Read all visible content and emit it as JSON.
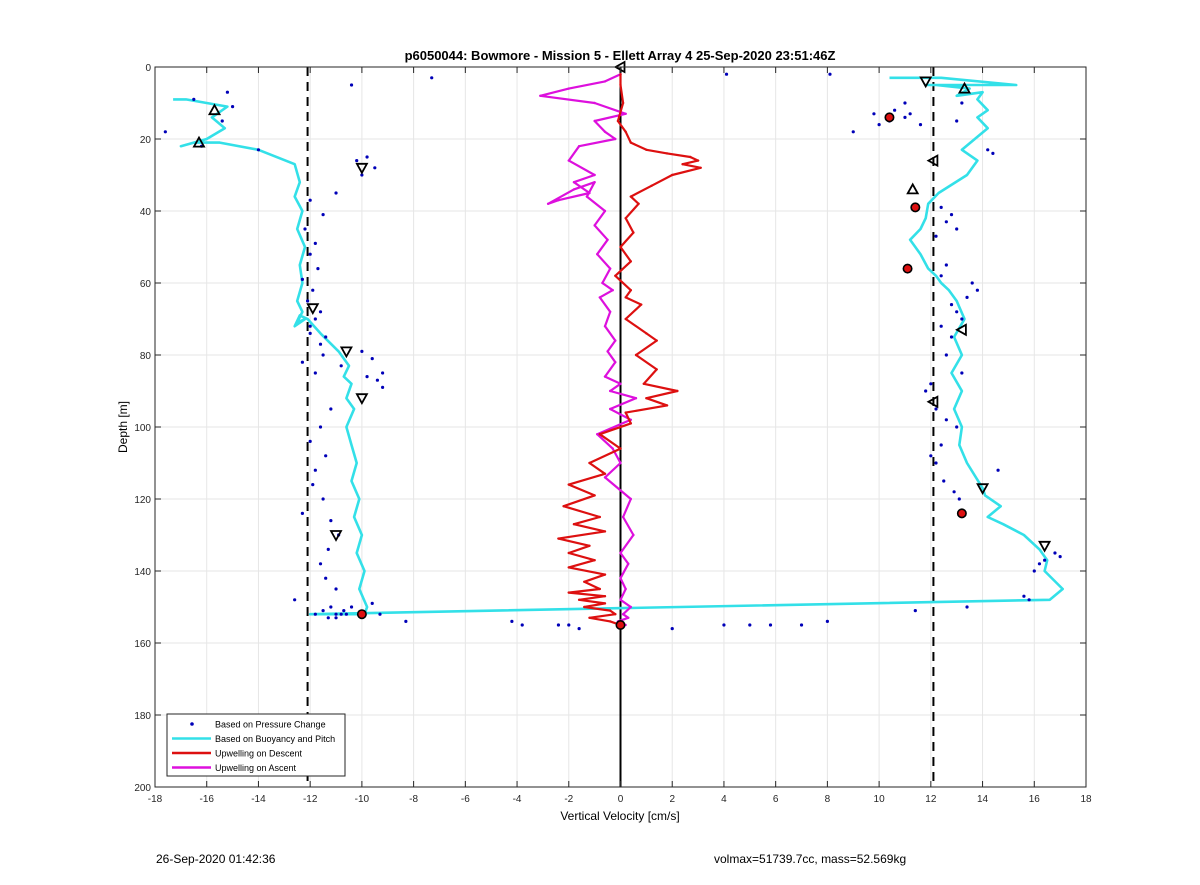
{
  "footer": {
    "timestamp": "26-Sep-2020 01:42:36",
    "info": "volmax=51739.7cc, mass=52.569kg"
  },
  "chart_data": {
    "type": "line",
    "title": "p6050044: Bowmore - Mission 5 - Ellett Array 4 25-Sep-2020 23:51:46Z",
    "xlabel": "Vertical Velocity [cm/s]",
    "ylabel": "Depth [m]",
    "xlim": [
      -18,
      18
    ],
    "ylim": [
      0,
      200
    ],
    "y_reversed": true,
    "grid": true,
    "xticks": [
      -18,
      -16,
      -14,
      -12,
      -10,
      -8,
      -6,
      -4,
      -2,
      0,
      2,
      4,
      6,
      8,
      10,
      12,
      14,
      16,
      18
    ],
    "yticks": [
      0,
      20,
      40,
      60,
      80,
      100,
      120,
      140,
      160,
      180,
      200
    ],
    "legend_position": "bottom-left",
    "legend": [
      "Based on Pressure Change",
      "Based on Buoyancy and Pitch",
      "Upwelling on Descent",
      "Upwelling on Ascent"
    ],
    "colors": {
      "pressure": "#0000b8",
      "buoyancy": "#33e0e8",
      "descent": "#dd1010",
      "ascent": "#dd10dd",
      "reference": "#000000"
    },
    "reference_lines": {
      "solid_x": 0,
      "dashed_x": [
        -12.1,
        12.1
      ]
    },
    "series": [
      {
        "name": "Based on Buoyancy and Pitch",
        "x": [
          -17.3,
          -16.8,
          -16.0,
          -15.2,
          -15.8,
          -15.3,
          -16.0,
          -17.0,
          -16.5,
          -15.5,
          -14.0,
          -12.6,
          -12.4,
          -12.6,
          -12.3,
          -12.5,
          -12.2,
          -12.4,
          -12.3,
          -12.5,
          -12.3,
          -12.5,
          -12.2,
          -12.6,
          -12.4,
          -12.1,
          -11.6,
          -10.9,
          -10.5,
          -10.7,
          -10.4,
          -10.6,
          -10.3,
          -10.6,
          -10.4,
          -10.2,
          -10.4,
          -10.1,
          -10.3,
          -10.0,
          -10.2,
          -9.9,
          -10.1,
          -9.8,
          -9.9,
          -12.0,
          16.6,
          17.1,
          16.4,
          16.5,
          16.2,
          15.6,
          14.8,
          14.2,
          14.7,
          14.1,
          14.0,
          13.4,
          13.1,
          13.2,
          12.9,
          13.2,
          12.8,
          13.2,
          12.9,
          13.3,
          13.0,
          12.7,
          12.4,
          12.2,
          11.9,
          11.6,
          11.2,
          11.6,
          11.8,
          11.9,
          12.3,
          13.4,
          13.8,
          13.2,
          13.7,
          14.2,
          13.8,
          14.2,
          13.8,
          14.0,
          13.0,
          13.5,
          12.2,
          11.8,
          15.3,
          12.4,
          10.4
        ],
        "y": [
          9,
          9,
          10,
          11,
          14,
          17,
          20,
          22,
          21,
          21,
          23,
          27,
          32,
          36,
          40,
          45,
          50,
          55,
          60,
          65,
          68,
          71,
          70,
          72,
          69,
          70,
          74,
          79,
          83,
          86,
          88,
          92,
          95,
          100,
          105,
          110,
          115,
          120,
          125,
          130,
          135,
          140,
          145,
          150,
          152,
          152,
          148,
          145,
          140,
          137,
          134,
          130,
          127,
          125,
          122,
          119,
          117,
          110,
          105,
          100,
          95,
          90,
          85,
          80,
          75,
          70,
          65,
          62,
          60,
          58,
          56,
          52,
          48,
          45,
          42,
          38,
          35,
          30,
          26,
          23,
          20,
          17,
          14,
          12,
          9,
          7,
          8,
          6,
          5,
          5,
          5,
          3,
          3
        ]
      },
      {
        "name": "Upwelling on Descent",
        "x": [
          0.0,
          0.0,
          0.1,
          -0.1,
          0.2,
          0.4,
          1.0,
          1.8,
          2.7,
          3.0,
          2.4,
          3.1,
          2.0,
          1.2,
          0.4,
          0.7,
          0.2,
          0.5,
          0.0,
          0.4,
          -0.2,
          0.4,
          0.2,
          0.8,
          0.2,
          1.0,
          1.4,
          0.6,
          1.4,
          0.9,
          2.2,
          1.0,
          1.8,
          0.2,
          0.4,
          -0.8,
          0.0,
          -1.2,
          -0.6,
          -2.0,
          -1.0,
          -2.2,
          -0.8,
          -1.8,
          -0.6,
          -2.4,
          -1.2,
          -2.0,
          -1.0,
          -2.0,
          -0.6,
          -1.4,
          -0.8,
          -2.0,
          -0.6,
          -1.6,
          -0.6,
          -1.4,
          -0.4,
          -0.2,
          -1.2,
          -0.4,
          0.0
        ],
        "y": [
          2,
          5,
          10,
          15,
          18,
          21,
          23,
          24,
          25,
          26,
          27,
          28,
          30,
          33,
          36,
          38,
          42,
          46,
          50,
          54,
          58,
          62,
          64,
          66,
          70,
          74,
          76,
          80,
          84,
          88,
          90,
          92,
          94,
          96,
          99,
          102,
          106,
          110,
          113,
          116,
          119,
          122,
          125,
          127,
          129,
          131,
          133,
          135,
          137,
          139,
          141,
          143,
          145,
          146,
          147,
          148,
          149,
          150,
          151,
          152,
          153,
          154,
          155
        ]
      },
      {
        "name": "Upwelling on Ascent",
        "x": [
          0.0,
          -0.6,
          -2.0,
          -3.1,
          -1.0,
          0.2,
          -1.0,
          -0.6,
          -0.2,
          -1.6,
          -2.0,
          -1.0,
          -1.8,
          -1.2,
          -2.4,
          -2.8,
          -1.8,
          -1.0,
          -1.3,
          -0.6,
          -1.0,
          -0.5,
          -0.9,
          -0.4,
          -0.7,
          -0.3,
          -0.8,
          -0.4,
          -0.6,
          -0.2,
          -0.5,
          -0.2,
          -0.6,
          0.0,
          -0.4,
          0.6,
          -0.4,
          0.4,
          -0.9,
          -0.3,
          0.0,
          -0.6,
          0.4,
          0.1,
          0.5,
          0.0,
          0.3,
          0.0,
          0.2,
          0.0,
          0.4,
          0.1,
          0.3,
          -0.1,
          0.2
        ],
        "y": [
          2,
          4,
          6,
          8,
          10,
          13,
          15,
          18,
          20,
          22,
          26,
          30,
          32,
          35,
          37,
          38,
          34,
          32,
          36,
          40,
          44,
          48,
          52,
          56,
          60,
          62,
          64,
          68,
          72,
          76,
          79,
          82,
          86,
          88,
          90,
          92,
          95,
          98,
          102,
          106,
          110,
          114,
          120,
          125,
          130,
          135,
          138,
          142,
          145,
          148,
          150,
          152,
          153,
          154,
          155
        ]
      },
      {
        "name": "Based on Pressure Change",
        "x": [
          -15.2,
          -16.5,
          -17.6,
          -15.4,
          -15.0,
          -14.0,
          -16.2,
          -10.4,
          -7.3,
          -9.8,
          -10.2,
          -9.5,
          -10.0,
          -11.0,
          -12.0,
          -11.5,
          -12.2,
          -11.8,
          -12.0,
          -11.7,
          -12.3,
          -11.9,
          -12.1,
          -11.6,
          -11.8,
          -12.0,
          -11.4,
          -11.6,
          -12.0,
          -11.5,
          -12.3,
          -11.8,
          -10.0,
          -10.8,
          -9.6,
          -9.2,
          -9.8,
          -9.4,
          -9.2,
          -11.2,
          -11.6,
          -12.0,
          -11.4,
          -11.8,
          -11.9,
          -12.3,
          -11.5,
          -11.2,
          -10.9,
          -11.3,
          -11.6,
          -11.4,
          -11.0,
          -12.6,
          -11.2,
          -11.5,
          -10.8,
          -11.0,
          -11.3,
          -11.0,
          -10.6,
          -10.7,
          -10.4,
          -9.3,
          -9.6,
          -11.8,
          -8.3,
          -4.2,
          -3.8,
          -2.4,
          -2.0,
          -1.6,
          2.0,
          4.0,
          5.0,
          5.8,
          7.0,
          8.0,
          9.8,
          10.4,
          11.0,
          10.0,
          9.0,
          10.6,
          11.0,
          11.2,
          11.6,
          13.2,
          14.2,
          14.4,
          13.0,
          12.4,
          12.8,
          12.6,
          13.0,
          12.2,
          12.6,
          12.4,
          13.6,
          13.8,
          13.4,
          12.8,
          13.0,
          13.2,
          12.4,
          12.8,
          12.6,
          13.2,
          12.0,
          11.8,
          12.2,
          12.6,
          13.0,
          12.4,
          12.2,
          12.0,
          12.5,
          12.9,
          13.1,
          14.6,
          15.6,
          16.4,
          16.8,
          16.2,
          16.0,
          17.0,
          15.8,
          13.4,
          11.4,
          4.1,
          8.1
        ],
        "y": [
          7,
          9,
          18,
          15,
          11,
          23,
          22,
          5,
          3,
          25,
          26,
          28,
          30,
          35,
          37,
          41,
          45,
          49,
          52,
          56,
          59,
          62,
          65,
          68,
          70,
          72,
          75,
          77,
          74,
          80,
          82,
          85,
          79,
          83,
          81,
          85,
          86,
          87,
          89,
          95,
          100,
          104,
          108,
          112,
          116,
          124,
          120,
          126,
          130,
          134,
          138,
          142,
          145,
          148,
          150,
          151,
          152,
          152,
          153,
          153,
          152,
          151,
          150,
          152,
          149,
          152,
          154,
          154,
          155,
          155,
          155,
          156,
          156,
          155,
          155,
          155,
          155,
          154,
          13,
          15,
          14,
          16,
          18,
          12,
          10,
          13,
          16,
          10,
          23,
          24,
          15,
          39,
          41,
          43,
          45,
          47,
          55,
          58,
          60,
          62,
          64,
          66,
          68,
          70,
          72,
          75,
          80,
          85,
          88,
          90,
          95,
          98,
          100,
          105,
          110,
          108,
          115,
          118,
          120,
          112,
          147,
          137,
          135,
          138,
          140,
          136,
          148,
          150,
          151,
          2,
          2
        ]
      }
    ],
    "markers": {
      "name": "profile markers",
      "x": [
        -15.7,
        -16.3,
        -10.0,
        -11.9,
        -10.6,
        -10.0,
        -11.0,
        -10.0,
        0.0,
        0.0,
        11.8,
        13.3,
        10.4,
        12.1,
        11.3,
        11.4,
        11.1,
        13.2,
        12.1,
        14.0,
        13.2,
        16.4
      ],
      "y": [
        12,
        21,
        28,
        67,
        79,
        92,
        130,
        152,
        0,
        155,
        4,
        6,
        14,
        26,
        34,
        39,
        56,
        73,
        93,
        117,
        124,
        133
      ],
      "shape": [
        "up",
        "up",
        "down",
        "down",
        "down",
        "down",
        "down",
        "star",
        "left",
        "star",
        "down",
        "up",
        "star",
        "left",
        "up",
        "star",
        "star",
        "left",
        "left",
        "down",
        "star",
        "down"
      ]
    }
  }
}
